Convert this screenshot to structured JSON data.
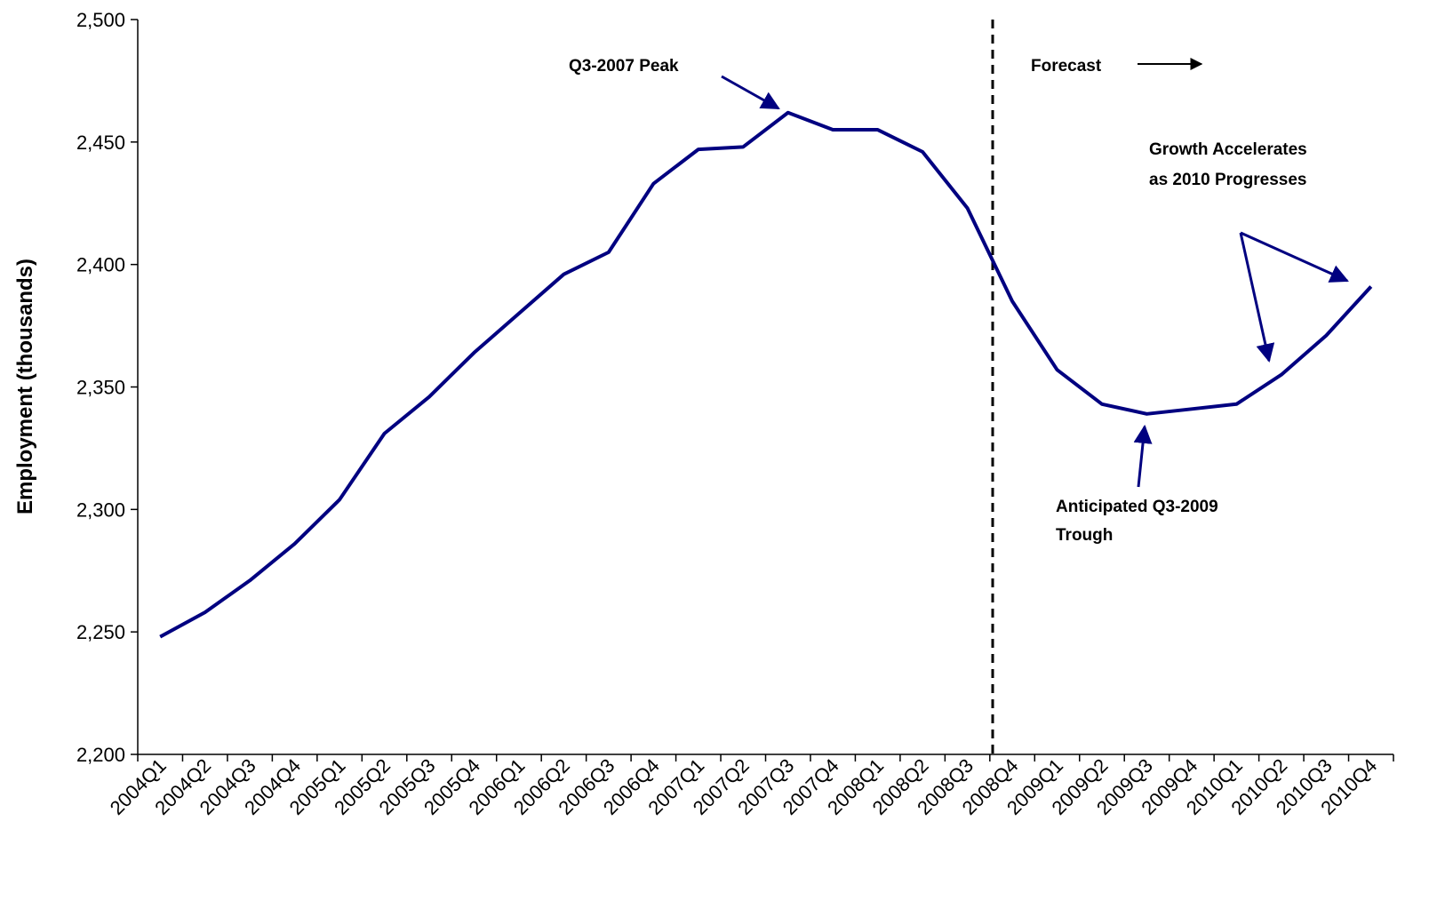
{
  "chart_data": {
    "type": "line",
    "y_label": "Employment (thousands)",
    "categories": [
      "2004Q1",
      "2004Q2",
      "2004Q3",
      "2004Q4",
      "2005Q1",
      "2005Q2",
      "2005Q3",
      "2005Q4",
      "2006Q1",
      "2006Q2",
      "2006Q3",
      "2006Q4",
      "2007Q1",
      "2007Q2",
      "2007Q3",
      "2007Q4",
      "2008Q1",
      "2008Q2",
      "2008Q3",
      "2008Q4",
      "2009Q1",
      "2009Q2",
      "2009Q3",
      "2009Q4",
      "2010Q1",
      "2010Q2",
      "2010Q3",
      "2010Q4"
    ],
    "series": [
      {
        "color": "#000080",
        "values": [
          2248,
          2258,
          2271,
          2286,
          2304,
          2331,
          2346,
          2364,
          2380,
          2396,
          2405,
          2433,
          2447,
          2448,
          2462,
          2455,
          2455,
          2446,
          2423,
          2385,
          2357,
          2343,
          2339,
          2341,
          2343,
          2355,
          2371,
          2391
        ]
      }
    ],
    "ylim": [
      2200,
      2500
    ],
    "yticks": [
      {
        "value": 2200,
        "label": "2,200"
      },
      {
        "value": 2250,
        "label": "2,250"
      },
      {
        "value": 2300,
        "label": "2,300"
      },
      {
        "value": 2350,
        "label": "2,350"
      },
      {
        "value": 2400,
        "label": "2,400"
      },
      {
        "value": 2450,
        "label": "2,450"
      },
      {
        "value": 2500,
        "label": "2,500"
      }
    ],
    "annotations": [
      "Q3-2007 Peak",
      "Forecast",
      "Growth Accelerates",
      "as 2010 Progresses",
      "Anticipated Q3-2009",
      "Trough"
    ]
  }
}
